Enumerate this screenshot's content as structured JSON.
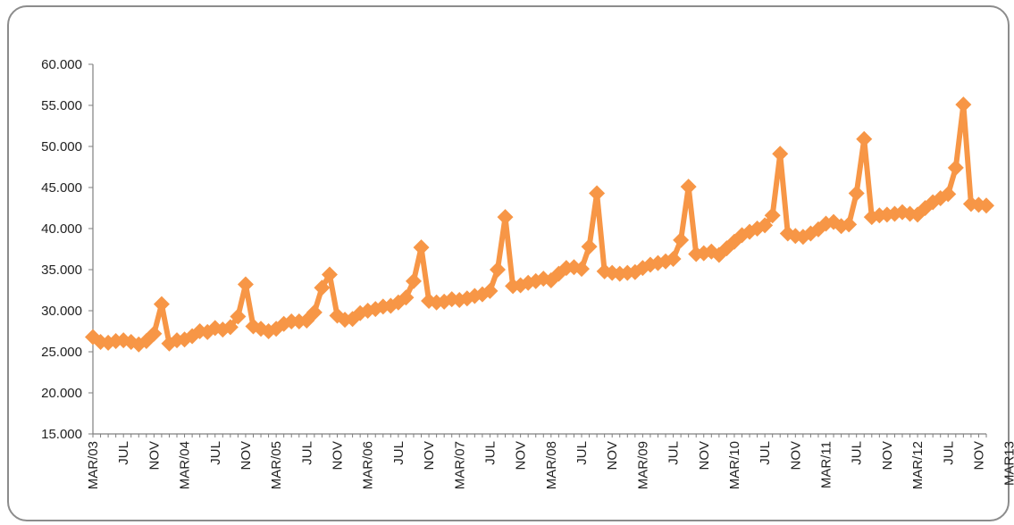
{
  "chart_data": {
    "type": "line",
    "title": "",
    "xlabel": "",
    "ylabel": "",
    "ylim": [
      15000,
      60000
    ],
    "ytick_values": [
      15000,
      20000,
      25000,
      30000,
      35000,
      40000,
      45000,
      50000,
      55000,
      60000
    ],
    "ytick_labels": [
      "15.000",
      "20.000",
      "25.000",
      "30.000",
      "35.000",
      "40.000",
      "45.000",
      "50.000",
      "55.000",
      "60.000"
    ],
    "grid": false,
    "legend": "none",
    "x_start": "MAR/03",
    "x_end": "MAR13",
    "xtick_labels": [
      "MAR/03",
      "JUL",
      "NOV",
      "MAR/04",
      "JUL",
      "NOV",
      "MAR/05",
      "JUL",
      "NOV",
      "MAR/06",
      "JUL",
      "NOV",
      "MAR/07",
      "JUL",
      "NOV",
      "MAR/08",
      "JUL",
      "NOV",
      "MAR/09",
      "JUL",
      "NOV",
      "MAR/10",
      "JUL",
      "NOV",
      "MAR/11",
      "JUL",
      "NOV",
      "MAR/12",
      "JUL",
      "NOV",
      "MAR13"
    ],
    "series": [
      {
        "color": "#F79646",
        "values": [
          26800,
          26200,
          26100,
          26300,
          26400,
          26200,
          25900,
          26300,
          27200,
          30800,
          26000,
          26400,
          26500,
          26900,
          27500,
          27400,
          27900,
          27700,
          28000,
          29300,
          33200,
          28100,
          27800,
          27500,
          27800,
          28400,
          28700,
          28700,
          28800,
          29800,
          32800,
          34400,
          29400,
          28900,
          29000,
          29700,
          30000,
          30200,
          30500,
          30600,
          31000,
          31600,
          33600,
          37700,
          31200,
          31000,
          31100,
          31400,
          31300,
          31500,
          31800,
          32000,
          32400,
          35000,
          41400,
          33000,
          33100,
          33400,
          33600,
          33900,
          33700,
          34500,
          35200,
          35300,
          35100,
          37800,
          44300,
          34800,
          34600,
          34500,
          34600,
          34700,
          35200,
          35600,
          35800,
          36000,
          36300,
          38600,
          45100,
          36900,
          37000,
          37200,
          36800,
          37600,
          38400,
          39200,
          39600,
          40000,
          40400,
          41600,
          49100,
          39400,
          39100,
          39000,
          39400,
          39900,
          40600,
          40800,
          40300,
          40500,
          44300,
          50900,
          41400,
          41600,
          41700,
          41800,
          42000,
          41800,
          41700,
          42500,
          43200,
          43700,
          44200,
          47400,
          55100,
          43000,
          42900,
          42800
        ]
      }
    ]
  }
}
